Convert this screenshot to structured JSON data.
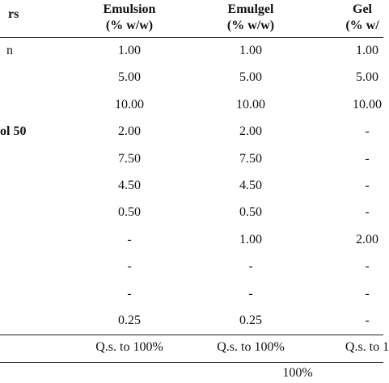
{
  "header": {
    "label": "rs",
    "columns": [
      {
        "name": "Emulsion",
        "unit": "(% w/w)"
      },
      {
        "name": "Emulgel",
        "unit": "(% w/w)"
      },
      {
        "name": "Gel",
        "unit": "(% w/"
      }
    ]
  },
  "table": {
    "rows": [
      {
        "label": "n",
        "cells": [
          "1.00",
          "1.00",
          "1.00"
        ]
      },
      {
        "cells": [
          "5.00",
          "5.00",
          "5.00"
        ]
      },
      {
        "cells": [
          "10.00",
          "10.00",
          "10.00"
        ]
      },
      {
        "label": "ol 50",
        "cells": [
          "2.00",
          "2.00",
          "-"
        ]
      },
      {
        "cells": [
          "7.50",
          "7.50",
          "-"
        ]
      },
      {
        "cells": [
          "4.50",
          "4.50",
          "-"
        ]
      },
      {
        "cells": [
          "0.50",
          "0.50",
          "-"
        ]
      },
      {
        "cells": [
          "-",
          "1.00",
          "2.00"
        ]
      },
      {
        "cells": [
          "-",
          "-",
          "-"
        ]
      },
      {
        "cells": [
          "-",
          "-",
          "-"
        ]
      },
      {
        "cells": [
          "0.25",
          "0.25",
          "-"
        ]
      },
      {
        "cells": [
          "Q.s. to 100%",
          "Q.s. to 100%",
          "Q.s. to 1"
        ]
      }
    ]
  },
  "footer": "100%"
}
